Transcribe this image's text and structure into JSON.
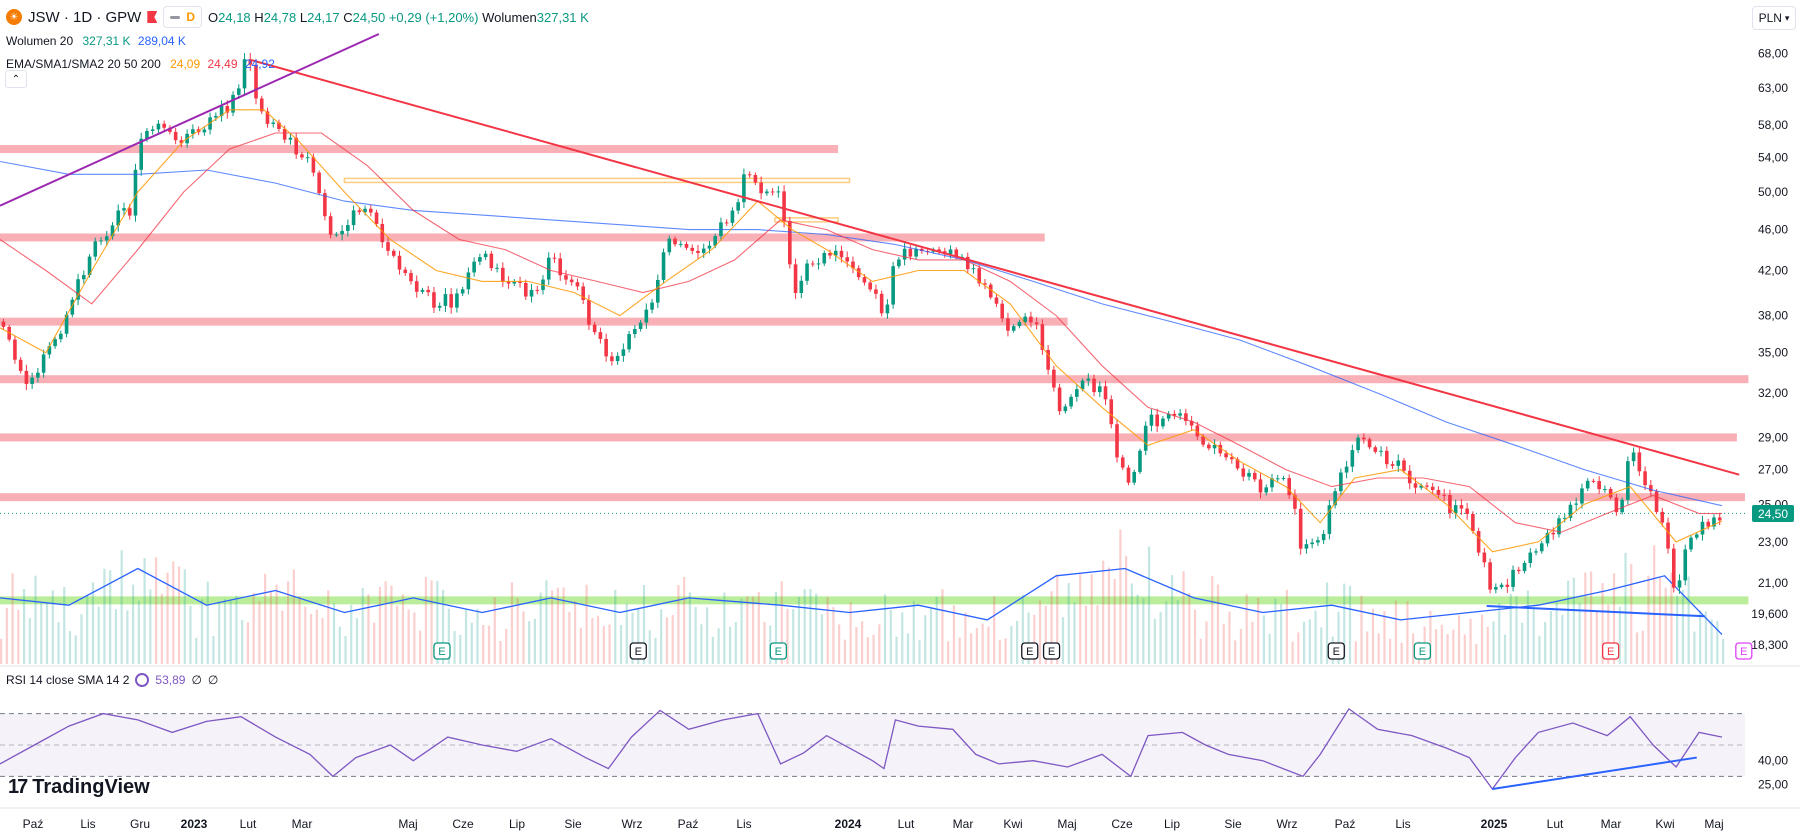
{
  "header": {
    "symbol": "JSW · 1D · GPW",
    "interval_badge": "D",
    "o_label": "O",
    "o_value": "24,18",
    "h_label": "H",
    "h_value": "24,78",
    "l_label": "L",
    "l_value": "24,17",
    "c_label": "C",
    "c_value": "24,50",
    "change": "+0,29 (+1,20%)",
    "volume_label": "Wolumen",
    "volume_value": "327,31 K"
  },
  "indicators": {
    "volume": {
      "label": "Wolumen 20",
      "v1": "327,31 K",
      "v2": "289,04 K"
    },
    "ma": {
      "label": "EMA/SMA1/SMA2 20 50 200",
      "ema": "24,09",
      "sma1": "24,49",
      "sma2": "24,92"
    },
    "rsi": {
      "label": "RSI 14 close SMA 14 2",
      "value": "53,89",
      "extra1": "∅",
      "extra2": "∅"
    }
  },
  "currency": "PLN",
  "last_price_tag": "24,50",
  "brand": "TradingView",
  "colors": {
    "up": "#089981",
    "down": "#f23645",
    "ema": "#ff9800",
    "sma1": "#f23645",
    "sma2": "#2962ff",
    "rsi": "#7e57c2",
    "zone": "#f7a1a8",
    "support": "#b2ec8f"
  },
  "chart_data": {
    "type": "candlestick",
    "symbol": "JSW",
    "price_axis": {
      "scale": "log",
      "range": [
        17.5,
        71
      ],
      "ticks": [
        "68,00",
        "63,00",
        "58,00",
        "54,00",
        "50,00",
        "46,00",
        "42,00",
        "38,00",
        "35,00",
        "32,00",
        "29,00",
        "27,00",
        "25,00",
        "23,00",
        "21,00",
        "19,600",
        "18,300"
      ]
    },
    "x_axis": {
      "ticks": [
        "Paź",
        "Lis",
        "Gru",
        "2023",
        "Lut",
        "Mar",
        "Maj",
        "Cze",
        "Lip",
        "Sie",
        "Wrz",
        "Paź",
        "Lis",
        "2024",
        "Lut",
        "Mar",
        "Kwi",
        "Maj",
        "Cze",
        "Lip",
        "Sie",
        "Wrz",
        "Paź",
        "Lis",
        "2025",
        "Lut",
        "Mar",
        "Kwi",
        "Maj"
      ]
    },
    "close_path": [
      [
        0,
        37.5
      ],
      [
        8,
        36
      ],
      [
        20,
        33
      ],
      [
        35,
        34
      ],
      [
        55,
        37
      ],
      [
        80,
        44
      ],
      [
        100,
        47
      ],
      [
        115,
        48
      ],
      [
        120,
        57
      ],
      [
        135,
        58
      ],
      [
        160,
        56
      ],
      [
        190,
        59
      ],
      [
        205,
        62
      ],
      [
        215,
        67
      ],
      [
        220,
        64
      ],
      [
        230,
        59
      ],
      [
        245,
        57
      ],
      [
        270,
        53
      ],
      [
        290,
        45
      ],
      [
        300,
        47
      ],
      [
        320,
        48
      ],
      [
        330,
        46
      ],
      [
        345,
        43
      ],
      [
        360,
        41
      ],
      [
        380,
        39
      ],
      [
        400,
        39.5
      ],
      [
        420,
        44
      ],
      [
        430,
        42
      ],
      [
        450,
        41
      ],
      [
        460,
        39
      ],
      [
        480,
        43
      ],
      [
        500,
        41
      ],
      [
        520,
        36
      ],
      [
        535,
        34.5
      ],
      [
        550,
        37
      ],
      [
        565,
        38
      ],
      [
        580,
        45
      ],
      [
        600,
        44
      ],
      [
        620,
        45
      ],
      [
        640,
        48
      ],
      [
        650,
        52
      ],
      [
        670,
        50
      ],
      [
        680,
        51
      ],
      [
        690,
        40
      ],
      [
        700,
        42
      ],
      [
        720,
        44
      ],
      [
        740,
        42
      ],
      [
        760,
        40
      ],
      [
        770,
        38
      ],
      [
        780,
        43
      ],
      [
        800,
        44
      ],
      [
        820,
        44
      ],
      [
        840,
        43
      ],
      [
        860,
        40
      ],
      [
        880,
        37
      ],
      [
        900,
        38
      ],
      [
        910,
        34
      ],
      [
        925,
        30.5
      ],
      [
        940,
        33
      ],
      [
        960,
        32
      ],
      [
        975,
        27.5
      ],
      [
        985,
        26
      ],
      [
        1000,
        30
      ],
      [
        1020,
        30.5
      ],
      [
        1030,
        31
      ],
      [
        1040,
        29
      ],
      [
        1060,
        28
      ],
      [
        1080,
        27
      ],
      [
        1100,
        26
      ],
      [
        1120,
        26.5
      ],
      [
        1135,
        22.5
      ],
      [
        1150,
        23
      ],
      [
        1165,
        26
      ],
      [
        1180,
        29
      ],
      [
        1200,
        28
      ],
      [
        1220,
        27
      ],
      [
        1240,
        26
      ],
      [
        1260,
        25
      ],
      [
        1280,
        24
      ],
      [
        1300,
        20.5
      ],
      [
        1310,
        21
      ],
      [
        1330,
        22
      ],
      [
        1350,
        23.5
      ],
      [
        1370,
        25
      ],
      [
        1380,
        26.5
      ],
      [
        1400,
        26
      ],
      [
        1410,
        24
      ],
      [
        1420,
        28
      ],
      [
        1430,
        27
      ],
      [
        1440,
        25
      ],
      [
        1450,
        23.5
      ],
      [
        1460,
        19.8
      ],
      [
        1470,
        23
      ],
      [
        1480,
        23.5
      ],
      [
        1500,
        24.5
      ]
    ],
    "ema20_path": [
      [
        0,
        37
      ],
      [
        40,
        35
      ],
      [
        80,
        42
      ],
      [
        120,
        50
      ],
      [
        160,
        56
      ],
      [
        200,
        60
      ],
      [
        230,
        60
      ],
      [
        260,
        56
      ],
      [
        300,
        50
      ],
      [
        340,
        45
      ],
      [
        380,
        42
      ],
      [
        420,
        41
      ],
      [
        460,
        41
      ],
      [
        500,
        40
      ],
      [
        540,
        38
      ],
      [
        580,
        41
      ],
      [
        620,
        44
      ],
      [
        660,
        49
      ],
      [
        690,
        46
      ],
      [
        720,
        44
      ],
      [
        760,
        41
      ],
      [
        800,
        42
      ],
      [
        840,
        42
      ],
      [
        880,
        39
      ],
      [
        920,
        34
      ],
      [
        960,
        31
      ],
      [
        1000,
        28.5
      ],
      [
        1040,
        29.5
      ],
      [
        1080,
        27.5
      ],
      [
        1120,
        26
      ],
      [
        1150,
        24
      ],
      [
        1180,
        26.5
      ],
      [
        1220,
        27
      ],
      [
        1260,
        25
      ],
      [
        1300,
        22.5
      ],
      [
        1340,
        23
      ],
      [
        1380,
        25
      ],
      [
        1420,
        26
      ],
      [
        1460,
        23
      ],
      [
        1500,
        24.09
      ]
    ],
    "sma50_path": [
      [
        0,
        45
      ],
      [
        40,
        42
      ],
      [
        80,
        39
      ],
      [
        120,
        44
      ],
      [
        160,
        50
      ],
      [
        200,
        55
      ],
      [
        240,
        57
      ],
      [
        280,
        57
      ],
      [
        320,
        53
      ],
      [
        360,
        48
      ],
      [
        400,
        45
      ],
      [
        440,
        44
      ],
      [
        480,
        42
      ],
      [
        520,
        41
      ],
      [
        560,
        40
      ],
      [
        600,
        41
      ],
      [
        640,
        43
      ],
      [
        680,
        47
      ],
      [
        720,
        46
      ],
      [
        760,
        44
      ],
      [
        800,
        43
      ],
      [
        840,
        43
      ],
      [
        880,
        41
      ],
      [
        920,
        38
      ],
      [
        960,
        34
      ],
      [
        1000,
        31
      ],
      [
        1040,
        30
      ],
      [
        1080,
        28.5
      ],
      [
        1120,
        27
      ],
      [
        1160,
        26
      ],
      [
        1200,
        26.5
      ],
      [
        1240,
        26.5
      ],
      [
        1280,
        26
      ],
      [
        1320,
        24
      ],
      [
        1360,
        23.5
      ],
      [
        1400,
        24.5
      ],
      [
        1440,
        25.5
      ],
      [
        1480,
        24.5
      ],
      [
        1500,
        24.49
      ]
    ],
    "sma200_path": [
      [
        0,
        53.5
      ],
      [
        60,
        52
      ],
      [
        120,
        52
      ],
      [
        180,
        52.5
      ],
      [
        240,
        51
      ],
      [
        300,
        49
      ],
      [
        360,
        48
      ],
      [
        420,
        47.5
      ],
      [
        480,
        47
      ],
      [
        540,
        46.5
      ],
      [
        600,
        46
      ],
      [
        660,
        46
      ],
      [
        720,
        45.5
      ],
      [
        780,
        44.5
      ],
      [
        840,
        43
      ],
      [
        900,
        41
      ],
      [
        960,
        39
      ],
      [
        1020,
        37.5
      ],
      [
        1080,
        36
      ],
      [
        1140,
        34
      ],
      [
        1200,
        32
      ],
      [
        1260,
        30
      ],
      [
        1320,
        28.5
      ],
      [
        1380,
        27
      ],
      [
        1440,
        25.8
      ],
      [
        1500,
        24.92
      ]
    ],
    "trendlines": [
      {
        "from": [
          219,
          67
        ],
        "to": [
          1515,
          26.7
        ],
        "color": "#f23645"
      },
      {
        "from": [
          0,
          48.5
        ],
        "to": [
          330,
          71
        ],
        "color": "#9c27b0"
      },
      {
        "from": [
          1295,
          19.95
        ],
        "to": [
          1485,
          19.5
        ],
        "color": "#2962ff"
      }
    ],
    "horizontal_zones": [
      {
        "level": 55,
        "x_end": 730
      },
      {
        "level": 45.2,
        "x_end": 910
      },
      {
        "level": 37.5,
        "x_end": 930
      },
      {
        "level": 33,
        "x_end": 1523
      },
      {
        "level": 29,
        "x_end": 1513
      },
      {
        "level": 25.4,
        "x_end": 1520
      }
    ],
    "support_zone": {
      "level": 20.2,
      "x_end": 1523
    },
    "event_markers": [
      [
        "E",
        385
      ],
      [
        "E",
        556
      ],
      [
        "E",
        678
      ],
      [
        "E",
        897
      ],
      [
        "E",
        916
      ],
      [
        "E",
        1164
      ],
      [
        "E",
        1239
      ],
      [
        "E",
        1403
      ],
      [
        "E",
        1519
      ]
    ],
    "volume_avg_path": [
      [
        0,
        4.5
      ],
      [
        60,
        4
      ],
      [
        120,
        6.5
      ],
      [
        180,
        4
      ],
      [
        240,
        5
      ],
      [
        300,
        3.5
      ],
      [
        360,
        4.5
      ],
      [
        420,
        3.5
      ],
      [
        480,
        4.5
      ],
      [
        540,
        3.5
      ],
      [
        600,
        4.5
      ],
      [
        680,
        4
      ],
      [
        740,
        3.5
      ],
      [
        800,
        4
      ],
      [
        860,
        3
      ],
      [
        920,
        6
      ],
      [
        980,
        6.5
      ],
      [
        1040,
        4.5
      ],
      [
        1100,
        3.5
      ],
      [
        1160,
        4
      ],
      [
        1220,
        3
      ],
      [
        1280,
        3.5
      ],
      [
        1340,
        4
      ],
      [
        1400,
        5
      ],
      [
        1450,
        6
      ],
      [
        1500,
        2
      ]
    ],
    "rsi": {
      "range": [
        15,
        85
      ],
      "ticks": [
        "40,00",
        "25,00"
      ],
      "bands": [
        70,
        50,
        30
      ],
      "rsi_path": [
        [
          0,
          38
        ],
        [
          30,
          50
        ],
        [
          60,
          62
        ],
        [
          90,
          70
        ],
        [
          120,
          66
        ],
        [
          150,
          58
        ],
        [
          180,
          65
        ],
        [
          210,
          68
        ],
        [
          240,
          55
        ],
        [
          270,
          44
        ],
        [
          290,
          30
        ],
        [
          310,
          42
        ],
        [
          340,
          50
        ],
        [
          360,
          40
        ],
        [
          390,
          55
        ],
        [
          420,
          50
        ],
        [
          450,
          46
        ],
        [
          480,
          54
        ],
        [
          510,
          42
        ],
        [
          530,
          35
        ],
        [
          550,
          55
        ],
        [
          575,
          72
        ],
        [
          600,
          60
        ],
        [
          630,
          66
        ],
        [
          660,
          70
        ],
        [
          680,
          38
        ],
        [
          700,
          45
        ],
        [
          720,
          56
        ],
        [
          740,
          48
        ],
        [
          760,
          40
        ],
        [
          770,
          35
        ],
        [
          780,
          66
        ],
        [
          800,
          62
        ],
        [
          830,
          60
        ],
        [
          850,
          44
        ],
        [
          870,
          38
        ],
        [
          900,
          40
        ],
        [
          930,
          36
        ],
        [
          960,
          44
        ],
        [
          985,
          30
        ],
        [
          1000,
          56
        ],
        [
          1030,
          58
        ],
        [
          1050,
          50
        ],
        [
          1070,
          44
        ],
        [
          1100,
          40
        ],
        [
          1135,
          30
        ],
        [
          1150,
          44
        ],
        [
          1175,
          73
        ],
        [
          1200,
          60
        ],
        [
          1230,
          56
        ],
        [
          1260,
          48
        ],
        [
          1280,
          42
        ],
        [
          1300,
          22
        ],
        [
          1320,
          42
        ],
        [
          1340,
          58
        ],
        [
          1370,
          64
        ],
        [
          1400,
          56
        ],
        [
          1420,
          68
        ],
        [
          1440,
          50
        ],
        [
          1460,
          36
        ],
        [
          1480,
          58
        ],
        [
          1500,
          55
        ]
      ],
      "trendline": {
        "from": [
          1300,
          22
        ],
        "to": [
          1478,
          42
        ]
      }
    }
  }
}
